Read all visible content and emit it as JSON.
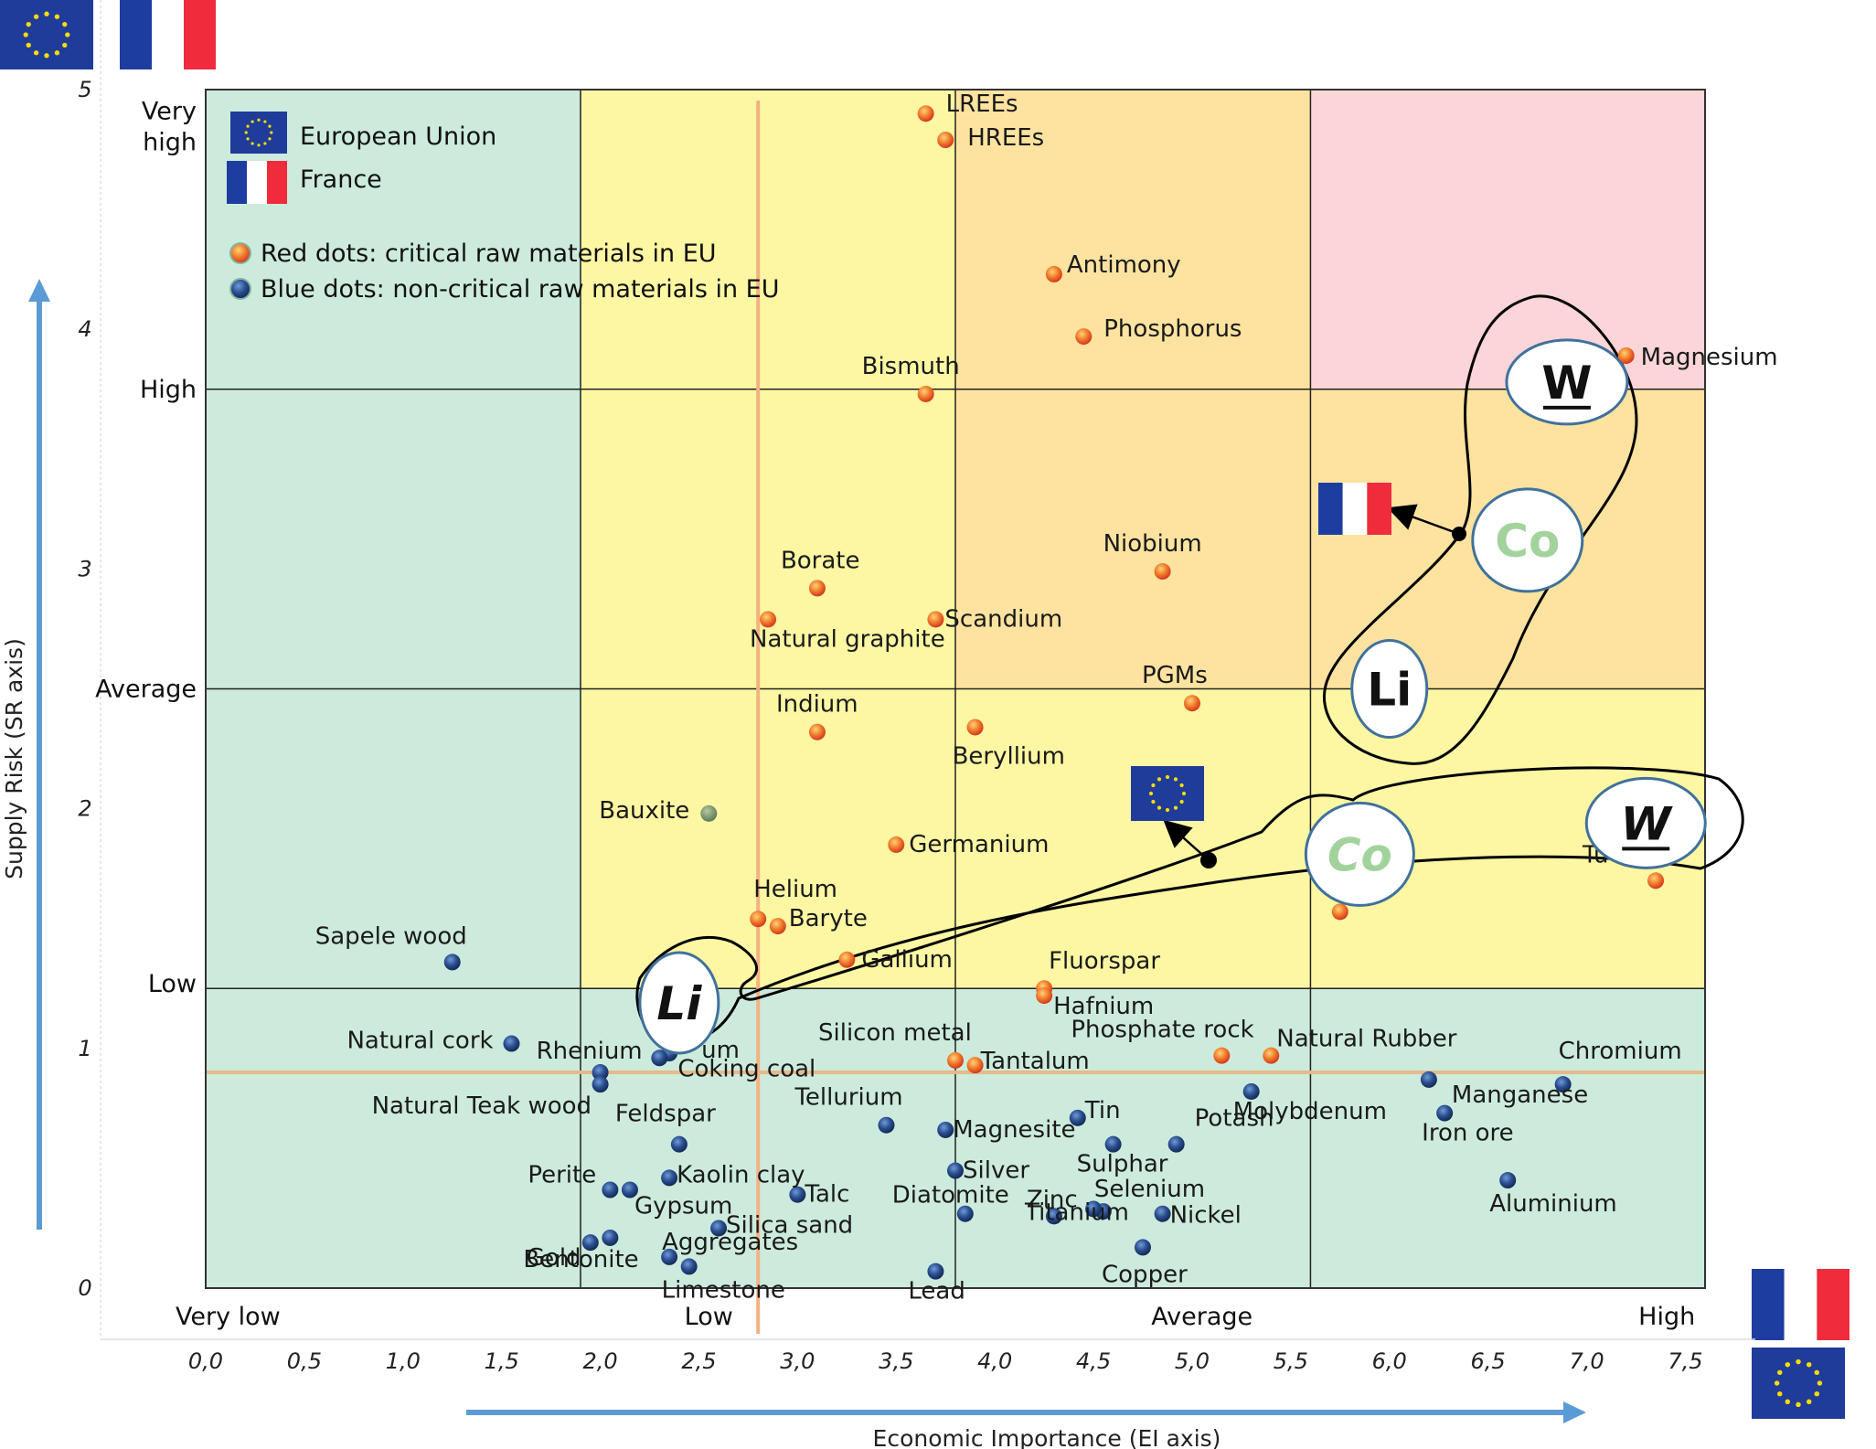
{
  "chart_data": {
    "type": "scatter",
    "title": "",
    "xlabel": "Economic Importance (EI axis)",
    "ylabel": "Supply Risk (SR axis)",
    "xlim": [
      0,
      7.6
    ],
    "ylim": [
      0,
      5
    ],
    "x_ticks": [
      "0,0",
      "0,5",
      "1,0",
      "1,5",
      "2,0",
      "2,5",
      "3,0",
      "3,5",
      "4,0",
      "4,5",
      "5,0",
      "5,5",
      "6,0",
      "6,5",
      "7,0",
      "7,5"
    ],
    "y_ticks": [
      "0",
      "1",
      "2",
      "3",
      "4",
      "5"
    ],
    "x_categories": [
      {
        "label": "Very low",
        "x": 0
      },
      {
        "label": "Low",
        "x": 2.55
      },
      {
        "label": "Average",
        "x": 5.05
      },
      {
        "label": "High",
        "x": 7.55
      }
    ],
    "y_categories": [
      {
        "label": "Very\nhigh",
        "y": 4.85
      },
      {
        "label": "High",
        "y": 3.75
      },
      {
        "label": "Average",
        "y": 2.5
      },
      {
        "label": "Low",
        "y": 1.27
      }
    ],
    "grid_x": [
      1.9,
      3.8,
      5.6
    ],
    "grid_y": [
      1.25,
      2.5,
      3.75
    ],
    "threshold_x": 2.8,
    "threshold_y": 0.9,
    "zones": [
      {
        "x": [
          0,
          1.9
        ],
        "y": [
          0,
          5
        ],
        "color": "#cdebdc"
      },
      {
        "x": [
          1.9,
          3.8
        ],
        "y": [
          1.25,
          5
        ],
        "color": "#fdf7a3"
      },
      {
        "x": [
          3.8,
          5.6
        ],
        "y": [
          2.5,
          5
        ],
        "color": "#fde39f"
      },
      {
        "x": [
          3.8,
          7.6
        ],
        "y": [
          1.25,
          2.5
        ],
        "color": "#fdf7a3"
      },
      {
        "x": [
          5.6,
          7.6
        ],
        "y": [
          2.5,
          3.75
        ],
        "color": "#fde39f"
      },
      {
        "x": [
          5.6,
          7.6
        ],
        "y": [
          3.75,
          5
        ],
        "color": "#fbd5d7"
      },
      {
        "x": [
          1.9,
          7.6
        ],
        "y": [
          0,
          1.25
        ],
        "color": "#cdebdc"
      }
    ],
    "legend": {
      "position": "top-left",
      "entries": [
        "European Union",
        "France",
        "Red dots: critical raw materials in EU",
        "Blue dots: non-critical raw materials in EU"
      ]
    },
    "series": [
      {
        "name": "Red dots: critical raw materials in EU",
        "color": "#e8432b",
        "points": [
          {
            "label": "LREEs",
            "x": 3.65,
            "y": 4.9
          },
          {
            "label": "HREEs",
            "x": 3.75,
            "y": 4.79
          },
          {
            "label": "Antimony",
            "x": 4.3,
            "y": 4.23
          },
          {
            "label": "Phosphorus",
            "x": 4.45,
            "y": 3.97
          },
          {
            "label": "Bismuth",
            "x": 3.65,
            "y": 3.73
          },
          {
            "label": "Magnesium",
            "x": 7.2,
            "y": 3.89
          },
          {
            "label": "Niobium",
            "x": 4.85,
            "y": 2.99
          },
          {
            "label": "Borate",
            "x": 3.1,
            "y": 2.92
          },
          {
            "label": "Natural graphite",
            "x": 2.85,
            "y": 2.79
          },
          {
            "label": "Scandium",
            "x": 3.7,
            "y": 2.79
          },
          {
            "label": "PGMs",
            "x": 5.0,
            "y": 2.44
          },
          {
            "label": "Indium",
            "x": 3.1,
            "y": 2.32
          },
          {
            "label": "Beryllium",
            "x": 3.9,
            "y": 2.34
          },
          {
            "label": "Germanium",
            "x": 3.5,
            "y": 1.85
          },
          {
            "label": "Helium",
            "x": 2.8,
            "y": 1.54
          },
          {
            "label": "Baryte",
            "x": 2.9,
            "y": 1.51
          },
          {
            "label": "Gallium",
            "x": 3.25,
            "y": 1.37
          },
          {
            "label": "Fluorspar",
            "x": 4.25,
            "y": 1.25
          },
          {
            "label": "Hafnium",
            "x": 4.25,
            "y": 1.22
          },
          {
            "label": "Tungsten",
            "x": 7.35,
            "y": 1.7
          },
          {
            "label": "Cobalt",
            "x": 5.75,
            "y": 1.57
          },
          {
            "label": "Phosphate rock",
            "x": 5.15,
            "y": 0.97
          },
          {
            "label": "Natural Rubber",
            "x": 5.4,
            "y": 0.97
          },
          {
            "label": "Silicon metal",
            "x": 3.8,
            "y": 0.95
          },
          {
            "label": "Tantalum",
            "x": 3.9,
            "y": 0.93
          },
          {
            "label": "Bauxite",
            "x": 2.55,
            "y": 1.98
          }
        ]
      },
      {
        "name": "Blue dots: non-critical raw materials in EU",
        "color": "#1f3f7a",
        "points": [
          {
            "label": "Sapele wood",
            "x": 1.25,
            "y": 1.36
          },
          {
            "label": "Natural cork",
            "x": 1.55,
            "y": 1.02
          },
          {
            "label": "Rhenium",
            "x": 2.0,
            "y": 0.9
          },
          {
            "label": "Lithium",
            "x": 2.35,
            "y": 0.98
          },
          {
            "label": "Coking coal",
            "x": 2.3,
            "y": 0.96
          },
          {
            "label": "Natural Teak wood",
            "x": 2.0,
            "y": 0.85
          },
          {
            "label": "Feldspar",
            "x": 2.4,
            "y": 0.6
          },
          {
            "label": "Tellurium",
            "x": 3.45,
            "y": 0.68
          },
          {
            "label": "Magnesite",
            "x": 3.75,
            "y": 0.66
          },
          {
            "label": "Tin",
            "x": 4.42,
            "y": 0.71
          },
          {
            "label": "Potash",
            "x": 4.92,
            "y": 0.6
          },
          {
            "label": "Molybdenum",
            "x": 5.3,
            "y": 0.82
          },
          {
            "label": "Manganese",
            "x": 6.2,
            "y": 0.87
          },
          {
            "label": "Chromium",
            "x": 6.88,
            "y": 0.85
          },
          {
            "label": "Iron ore",
            "x": 6.28,
            "y": 0.73
          },
          {
            "label": "Aluminium",
            "x": 6.6,
            "y": 0.45
          },
          {
            "label": "Sulphar",
            "x": 4.6,
            "y": 0.6
          },
          {
            "label": "Silver",
            "x": 3.8,
            "y": 0.49
          },
          {
            "label": "Kaolin clay",
            "x": 2.35,
            "y": 0.46
          },
          {
            "label": "Perite",
            "x": 2.05,
            "y": 0.41
          },
          {
            "label": "Gypsum",
            "x": 2.15,
            "y": 0.41
          },
          {
            "label": "Talc",
            "x": 3.0,
            "y": 0.39
          },
          {
            "label": "Diatomite",
            "x": 3.85,
            "y": 0.31
          },
          {
            "label": "Zinc",
            "x": 4.3,
            "y": 0.3
          },
          {
            "label": "Selenium",
            "x": 4.55,
            "y": 0.32
          },
          {
            "label": "Nickel",
            "x": 4.85,
            "y": 0.31
          },
          {
            "label": "Titanium",
            "x": 4.5,
            "y": 0.33
          },
          {
            "label": "Copper",
            "x": 4.75,
            "y": 0.17
          },
          {
            "label": "Silica sand",
            "x": 2.6,
            "y": 0.25
          },
          {
            "label": "Bentonite",
            "x": 2.05,
            "y": 0.21
          },
          {
            "label": "Gold",
            "x": 1.95,
            "y": 0.19
          },
          {
            "label": "Aggregates",
            "x": 2.35,
            "y": 0.13
          },
          {
            "label": "Limestone",
            "x": 2.45,
            "y": 0.09
          },
          {
            "label": "Lead",
            "x": 3.7,
            "y": 0.07
          }
        ]
      }
    ],
    "annotations": [
      {
        "label": "W",
        "x": 6.9,
        "y": 3.78,
        "group": "France",
        "color": "#111111"
      },
      {
        "label": "Co",
        "x": 6.7,
        "y": 3.12,
        "group": "France",
        "color": "#a3d39c"
      },
      {
        "label": "Li",
        "x": 6.0,
        "y": 2.5,
        "group": "France",
        "color": "#111111"
      },
      {
        "label": "W",
        "x": 7.3,
        "y": 1.94,
        "group": "European Union",
        "color": "#111111"
      },
      {
        "label": "Co",
        "x": 5.85,
        "y": 1.81,
        "group": "European Union",
        "color": "#a3d39c"
      },
      {
        "label": "Li",
        "x": 2.4,
        "y": 1.19,
        "group": "European Union",
        "color": "#111111"
      }
    ],
    "visible_label_overrides": {
      "Tungsten": "Tu",
      "Cobalt": "",
      "Lithium": "um"
    }
  }
}
